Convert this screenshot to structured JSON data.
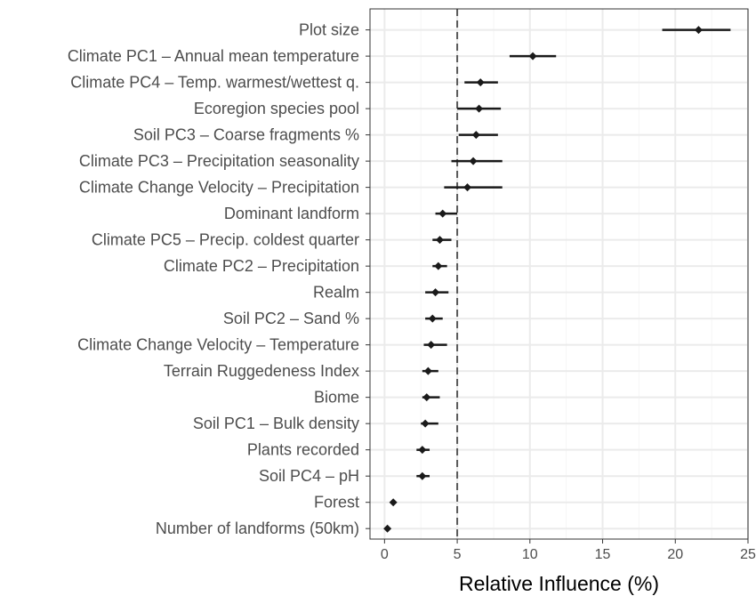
{
  "chart_data": {
    "type": "forest",
    "xlabel": "Relative Influence (%)",
    "ylabel": "",
    "xlim": [
      -1,
      25
    ],
    "x_ticks": [
      0,
      5,
      10,
      15,
      20,
      25
    ],
    "reference_line": 5,
    "grid": true,
    "legend": "none",
    "colors": {
      "panel_bg": "#ffffff",
      "panel_border": "#333333",
      "grid_major": "#ebebeb",
      "grid_minor": "#f5f5f5",
      "point": "#1a1a1a",
      "reference": "#595959",
      "tick_label": "#4d4d4d"
    },
    "rows": [
      {
        "label": "Plot size",
        "value": 21.6,
        "lower": 19.1,
        "upper": 23.8
      },
      {
        "label": "Climate PC1 – Annual mean temperature",
        "value": 10.2,
        "lower": 8.6,
        "upper": 11.8
      },
      {
        "label": "Climate PC4 – Temp. warmest/wettest q.",
        "value": 6.6,
        "lower": 5.5,
        "upper": 7.8
      },
      {
        "label": "Ecoregion species pool",
        "value": 6.5,
        "lower": 5.0,
        "upper": 8.0
      },
      {
        "label": "Soil PC3 – Coarse fragments %",
        "value": 6.3,
        "lower": 5.1,
        "upper": 7.8
      },
      {
        "label": "Climate PC3 – Precipitation seasonality",
        "value": 6.1,
        "lower": 4.6,
        "upper": 8.1
      },
      {
        "label": "Climate Change Velocity – Precipitation",
        "value": 5.7,
        "lower": 4.1,
        "upper": 8.1
      },
      {
        "label": "Dominant landform",
        "value": 4.0,
        "lower": 3.5,
        "upper": 5.0
      },
      {
        "label": "Climate PC5 – Precip. coldest quarter",
        "value": 3.8,
        "lower": 3.3,
        "upper": 4.6
      },
      {
        "label": "Climate PC2 – Precipitation",
        "value": 3.7,
        "lower": 3.3,
        "upper": 4.3
      },
      {
        "label": "Realm",
        "value": 3.5,
        "lower": 2.8,
        "upper": 4.4
      },
      {
        "label": "Soil PC2 – Sand %",
        "value": 3.3,
        "lower": 2.8,
        "upper": 4.0
      },
      {
        "label": "Climate Change Velocity – Temperature",
        "value": 3.2,
        "lower": 2.7,
        "upper": 4.3
      },
      {
        "label": "Terrain Ruggedeness Index",
        "value": 3.0,
        "lower": 2.6,
        "upper": 3.7
      },
      {
        "label": "Biome",
        "value": 2.9,
        "lower": 2.6,
        "upper": 3.8
      },
      {
        "label": "Soil PC1 – Bulk density",
        "value": 2.8,
        "lower": 2.5,
        "upper": 3.7
      },
      {
        "label": "Plants recorded",
        "value": 2.6,
        "lower": 2.2,
        "upper": 3.1
      },
      {
        "label": "Soil PC4 – pH",
        "value": 2.6,
        "lower": 2.2,
        "upper": 3.1
      },
      {
        "label": "Forest",
        "value": 0.6,
        "lower": 0.6,
        "upper": 0.6
      },
      {
        "label": "Number of landforms (50km)",
        "value": 0.2,
        "lower": 0.2,
        "upper": 0.2
      }
    ]
  }
}
